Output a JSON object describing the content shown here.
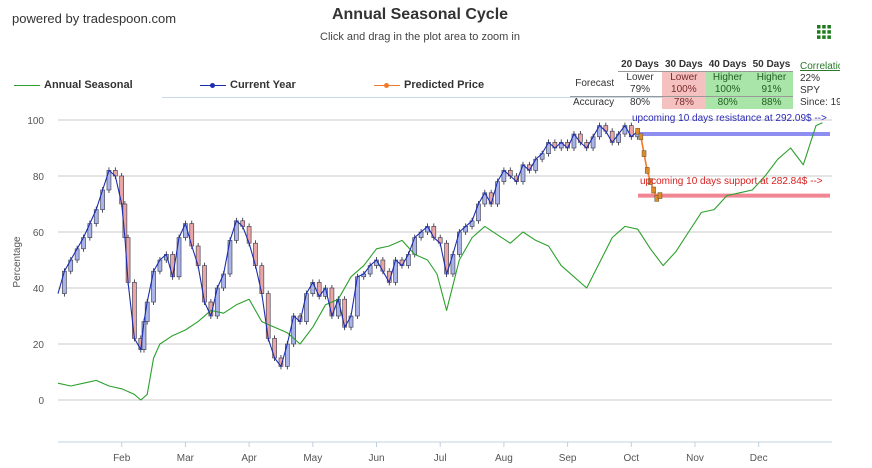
{
  "header": {
    "brand": "powered by tradespoon.com",
    "title": "Annual Seasonal Cycle",
    "subtitle": "Click and drag in the plot area to zoom in"
  },
  "icons": {
    "menu": "grid-menu-icon"
  },
  "colors": {
    "annual": "#2ca02c",
    "current": "#1a2db0",
    "predicted": "#f07a2a",
    "resistance": "#7b7bf0",
    "support": "#f07080",
    "up_candle": "#aab4e8",
    "down_candle": "#e8a6a6"
  },
  "legend": [
    {
      "name": "Annual Seasonal",
      "color": "#2ca02c"
    },
    {
      "name": "Current Year",
      "color": "#1a2db0"
    },
    {
      "name": "Predicted Price",
      "color": "#f07a2a"
    }
  ],
  "forecast_table": {
    "columns": [
      "20 Days",
      "30 Days",
      "40 Days",
      "50 Days"
    ],
    "forecast_label": "Forecast",
    "forecast": [
      {
        "dir": "Lower",
        "pct": "79%",
        "kind": "neutral"
      },
      {
        "dir": "Lower",
        "pct": "100%",
        "kind": "lower"
      },
      {
        "dir": "Higher",
        "pct": "100%",
        "kind": "higher"
      },
      {
        "dir": "Higher",
        "pct": "91%",
        "kind": "higher"
      }
    ],
    "accuracy_label": "Accuracy",
    "accuracy": [
      "80%",
      "78%",
      "80%",
      "88%"
    ]
  },
  "correlation": {
    "label": "Correlation",
    "value": "22%",
    "symbol": "SPY",
    "since": "Since: 19"
  },
  "annotations": {
    "resistance": "upcoming 10 days resistance at 292.09$ -->",
    "support": "upcoming 10 days support at 282.84$ -->"
  },
  "chart_data": {
    "type": "line",
    "ylabel": "Percentage",
    "ylim": [
      -15,
      100
    ],
    "yticks": [
      0,
      20,
      40,
      60,
      80,
      100
    ],
    "xlabels": [
      "Feb",
      "Mar",
      "Apr",
      "May",
      "Jun",
      "Jul",
      "Aug",
      "Sep",
      "Oct",
      "Nov",
      "Dec"
    ],
    "x_domain": [
      0,
      12.1
    ],
    "month_positions": [
      1,
      2,
      3,
      4,
      5,
      6,
      7,
      8,
      9,
      10,
      11
    ],
    "resistance_level": 95,
    "support_level": 73,
    "series": [
      {
        "name": "Annual Seasonal",
        "x": [
          0,
          0.2,
          0.4,
          0.6,
          0.8,
          1.0,
          1.2,
          1.3,
          1.4,
          1.5,
          1.6,
          1.8,
          2.0,
          2.2,
          2.4,
          2.6,
          2.8,
          3.0,
          3.2,
          3.4,
          3.6,
          3.8,
          4.0,
          4.2,
          4.4,
          4.6,
          4.8,
          5.0,
          5.2,
          5.4,
          5.6,
          5.8,
          5.95,
          6.1,
          6.3,
          6.5,
          6.7,
          6.9,
          7.1,
          7.3,
          7.5,
          7.7,
          7.9,
          8.1,
          8.3,
          8.5,
          8.7,
          8.9,
          9.1,
          9.3,
          9.5,
          9.7,
          9.9,
          10.1,
          10.3,
          10.5,
          10.7,
          10.9,
          11.1,
          11.3,
          11.5,
          11.7,
          11.9,
          12.0
        ],
        "y": [
          6,
          5,
          6,
          7,
          5,
          4,
          2,
          0,
          2,
          15,
          20,
          23,
          25,
          28,
          32,
          31,
          34,
          36,
          28,
          26,
          24,
          20,
          26,
          34,
          36,
          44,
          48,
          54,
          55,
          57,
          52,
          50,
          45,
          32,
          50,
          58,
          62,
          59,
          56,
          60,
          57,
          55,
          48,
          44,
          40,
          49,
          58,
          62,
          61,
          54,
          48,
          53,
          60,
          67,
          68,
          73,
          74,
          75,
          80,
          86,
          90,
          84,
          98,
          99
        ]
      },
      {
        "name": "Current Year",
        "x": [
          0,
          0.1,
          0.2,
          0.3,
          0.4,
          0.5,
          0.6,
          0.7,
          0.8,
          0.9,
          1.0,
          1.05,
          1.1,
          1.2,
          1.3,
          1.35,
          1.4,
          1.5,
          1.6,
          1.7,
          1.8,
          1.9,
          2.0,
          2.1,
          2.2,
          2.3,
          2.4,
          2.5,
          2.6,
          2.7,
          2.8,
          2.9,
          3.0,
          3.1,
          3.2,
          3.3,
          3.4,
          3.5,
          3.6,
          3.7,
          3.8,
          3.9,
          4.0,
          4.1,
          4.2,
          4.3,
          4.4,
          4.5,
          4.6,
          4.7,
          4.8,
          4.9,
          5.0,
          5.1,
          5.2,
          5.3,
          5.4,
          5.5,
          5.6,
          5.7,
          5.8,
          5.9,
          6.0,
          6.1,
          6.2,
          6.3,
          6.4,
          6.5,
          6.6,
          6.7,
          6.8,
          6.9,
          7.0,
          7.1,
          7.2,
          7.3,
          7.4,
          7.5,
          7.6,
          7.7,
          7.8,
          7.9,
          8.0,
          8.1,
          8.2,
          8.3,
          8.4,
          8.5,
          8.6,
          8.7,
          8.8,
          8.9,
          9.0,
          9.1
        ],
        "y": [
          38,
          46,
          50,
          54,
          58,
          63,
          68,
          75,
          82,
          80,
          70,
          58,
          42,
          22,
          18,
          28,
          35,
          46,
          50,
          52,
          44,
          58,
          63,
          55,
          48,
          35,
          30,
          40,
          45,
          57,
          64,
          62,
          56,
          48,
          38,
          22,
          15,
          12,
          20,
          30,
          28,
          38,
          42,
          37,
          40,
          30,
          36,
          26,
          30,
          44,
          45,
          48,
          50,
          46,
          42,
          50,
          48,
          52,
          58,
          60,
          62,
          58,
          56,
          45,
          52,
          60,
          62,
          64,
          70,
          74,
          70,
          78,
          82,
          80,
          78,
          84,
          82,
          86,
          88,
          92,
          90,
          92,
          90,
          95,
          92,
          90,
          94,
          98,
          96,
          92,
          95,
          98,
          94,
          96
        ]
      },
      {
        "name": "Predicted Price",
        "x": [
          9.1,
          9.15,
          9.2,
          9.25,
          9.3,
          9.35,
          9.4,
          9.45
        ],
        "y": [
          96,
          94,
          88,
          82,
          78,
          75,
          72,
          73
        ]
      }
    ]
  }
}
